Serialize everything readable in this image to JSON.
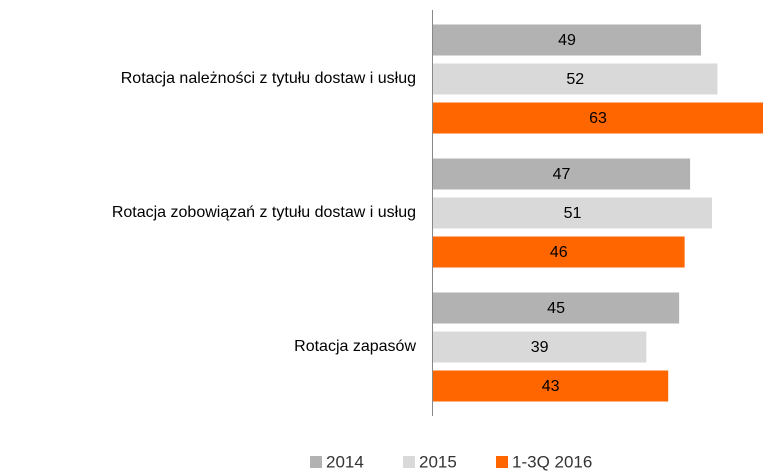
{
  "chart_data": {
    "type": "bar",
    "orientation": "horizontal",
    "categories": [
      "Rotacja należności z tytułu dostaw i usług",
      "Rotacja zobowiązań z tytułu dostaw i usług",
      "Rotacja zapasów"
    ],
    "series": [
      {
        "name": "2014",
        "color": "#b2b2b2",
        "values": [
          49,
          47,
          45
        ]
      },
      {
        "name": "2015",
        "color": "#d9d9d9",
        "values": [
          52,
          51,
          39
        ]
      },
      {
        "name": "1-3Q 2016",
        "color": "#ff6600",
        "values": [
          63,
          46,
          43
        ]
      }
    ]
  }
}
